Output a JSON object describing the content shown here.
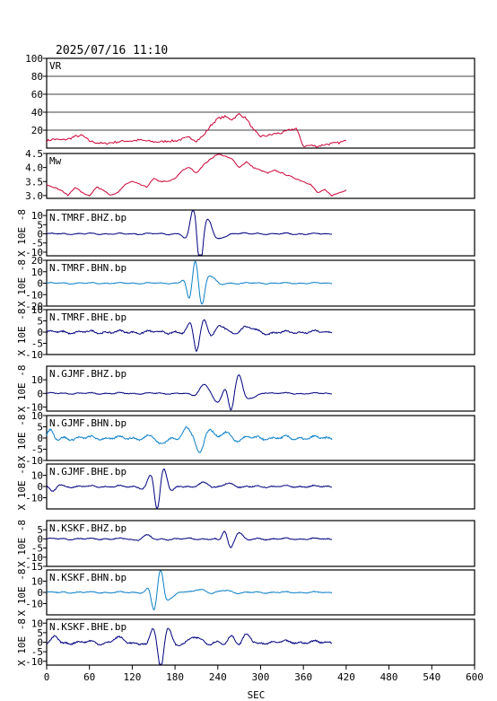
{
  "header": {
    "timestamp": "2025/07/16  11:10"
  },
  "colors": {
    "trace_dark": "#000080",
    "trace_light": "#0a7fc9",
    "inversion": "#cc0033",
    "frame": "#000000"
  },
  "chart_data": {
    "type": "line",
    "x_axis": {
      "label": "SEC",
      "range": [
        0,
        600
      ],
      "ticks": [
        0,
        60,
        120,
        180,
        240,
        300,
        360,
        420,
        480,
        540,
        600
      ],
      "tick_labels": [
        "0",
        "60",
        "120",
        "180",
        "240",
        "300",
        "360",
        "420",
        "480",
        "540",
        "600"
      ]
    },
    "panels": [
      {
        "id": "vr",
        "label": "VR",
        "ylim": [
          0,
          100
        ],
        "ticks": [
          20,
          40,
          60,
          80,
          100
        ],
        "tick_labels": [
          "20",
          "40",
          "60",
          "80",
          "100"
        ],
        "ylabel": "",
        "grid": true,
        "color": "inversion",
        "x": [
          0,
          10,
          20,
          30,
          40,
          50,
          60,
          70,
          80,
          90,
          100,
          110,
          120,
          130,
          140,
          150,
          160,
          170,
          180,
          190,
          200,
          210,
          220,
          230,
          240,
          250,
          260,
          270,
          280,
          290,
          300,
          310,
          320,
          330,
          340,
          350,
          360,
          370,
          380,
          390,
          400,
          410,
          420
        ],
        "values": [
          8,
          10,
          9,
          10,
          13,
          14,
          8,
          6,
          5,
          6,
          7,
          8,
          8,
          9,
          8,
          7,
          7,
          8,
          8,
          10,
          12,
          8,
          14,
          25,
          33,
          35,
          32,
          38,
          33,
          20,
          13,
          14,
          16,
          17,
          20,
          22,
          2,
          3,
          2,
          4,
          5,
          6,
          8
        ]
      },
      {
        "id": "mw",
        "label": "Mw",
        "ylim": [
          2.9,
          4.5
        ],
        "ticks": [
          3.0,
          3.5,
          4.0,
          4.5
        ],
        "tick_labels": [
          "3.0",
          "3.5",
          "4.0",
          "4.5"
        ],
        "ylabel": "",
        "grid": false,
        "color": "inversion",
        "x": [
          0,
          10,
          20,
          30,
          40,
          50,
          60,
          70,
          80,
          90,
          100,
          110,
          120,
          130,
          140,
          150,
          160,
          170,
          180,
          190,
          200,
          210,
          220,
          230,
          240,
          250,
          260,
          270,
          280,
          290,
          300,
          310,
          320,
          330,
          340,
          350,
          360,
          370,
          380,
          390,
          400,
          410,
          420
        ],
        "values": [
          3.4,
          3.3,
          3.2,
          3.0,
          3.3,
          3.1,
          3.0,
          3.3,
          3.2,
          3.0,
          3.1,
          3.4,
          3.5,
          3.4,
          3.3,
          3.6,
          3.5,
          3.5,
          3.6,
          3.9,
          4.0,
          3.8,
          4.1,
          4.3,
          4.5,
          4.4,
          4.3,
          4.0,
          4.2,
          4.0,
          3.9,
          3.8,
          3.9,
          3.8,
          3.7,
          3.6,
          3.5,
          3.4,
          3.1,
          3.2,
          3.0,
          3.1,
          3.2
        ]
      },
      {
        "id": "tmrf-bhz",
        "label": "N.TMRF.BHZ.bp",
        "ylim": [
          -12,
          13
        ],
        "ticks": [
          -10,
          -5,
          0,
          5,
          10
        ],
        "tick_labels": [
          "-10",
          "-5",
          "0",
          "5",
          "10"
        ],
        "ylabel": "X 10E -8",
        "grid": false,
        "color": "trace_dark",
        "events": [
          {
            "t": 205,
            "a": 10,
            "w": 10
          },
          {
            "t": 215,
            "a": -14,
            "w": 8
          },
          {
            "t": 228,
            "a": 6,
            "w": 10
          },
          {
            "t": 245,
            "a": -2,
            "w": 20
          }
        ],
        "noise": 0.6
      },
      {
        "id": "tmrf-bhn",
        "label": "N.TMRF.BHN.bp",
        "ylim": [
          -20,
          20
        ],
        "ticks": [
          -20,
          -10,
          0,
          10,
          20
        ],
        "tick_labels": [
          "-20",
          "-10",
          "0",
          "10",
          "20"
        ],
        "ylabel": "X 10E -8",
        "grid": false,
        "color": "trace_light",
        "events": [
          {
            "t": 200,
            "a": -10,
            "w": 8
          },
          {
            "t": 208,
            "a": 14,
            "w": 8
          },
          {
            "t": 218,
            "a": -14,
            "w": 8
          },
          {
            "t": 232,
            "a": 5,
            "w": 12
          }
        ],
        "noise": 0.8
      },
      {
        "id": "tmrf-bhe",
        "label": "N.TMRF.BHE.bp",
        "ylim": [
          -10,
          10
        ],
        "ticks": [
          -10,
          -5,
          0,
          5,
          10
        ],
        "tick_labels": [
          "-10",
          "-5",
          "0",
          "5",
          "10"
        ],
        "ylabel": "X 10E -8",
        "grid": false,
        "color": "trace_dark",
        "events": [
          {
            "t": 200,
            "a": 2,
            "w": 10
          },
          {
            "t": 210,
            "a": -6,
            "w": 8
          },
          {
            "t": 222,
            "a": 5,
            "w": 10
          },
          {
            "t": 245,
            "a": 3,
            "w": 18
          },
          {
            "t": 280,
            "a": 2,
            "w": 30
          }
        ],
        "noise": 1.0
      },
      {
        "id": "gjmf-bhz",
        "label": "N.GJMF.BHZ.bp",
        "ylim": [
          -13,
          20
        ],
        "ticks": [
          -10,
          0,
          10
        ],
        "tick_labels": [
          "-10",
          "0",
          "10"
        ],
        "ylabel": "X 10E -8",
        "grid": false,
        "color": "trace_dark",
        "events": [
          {
            "t": 220,
            "a": 6,
            "w": 14
          },
          {
            "t": 240,
            "a": -6,
            "w": 12
          },
          {
            "t": 258,
            "a": -10,
            "w": 8
          },
          {
            "t": 270,
            "a": 12,
            "w": 10
          },
          {
            "t": 290,
            "a": -3,
            "w": 16
          }
        ],
        "noise": 0.8
      },
      {
        "id": "gjmf-bhn",
        "label": "N.GJMF.BHN.bp",
        "ylim": [
          -10,
          10
        ],
        "ticks": [
          -10,
          -5,
          0,
          5,
          10
        ],
        "tick_labels": [
          "-10",
          "-5",
          "0",
          "5",
          "10"
        ],
        "ylabel": "X 10E -8",
        "grid": false,
        "color": "trace_light",
        "events": [
          {
            "t": 5,
            "a": 3,
            "w": 10
          },
          {
            "t": 160,
            "a": -3,
            "w": 14
          },
          {
            "t": 195,
            "a": 4,
            "w": 12
          },
          {
            "t": 215,
            "a": -5,
            "w": 10
          },
          {
            "t": 230,
            "a": 4,
            "w": 12
          },
          {
            "t": 250,
            "a": 3,
            "w": 16
          }
        ],
        "noise": 1.2
      },
      {
        "id": "gjmf-bhe",
        "label": "N.GJMF.BHE.bp",
        "ylim": [
          -20,
          20
        ],
        "ticks": [
          -10,
          0,
          10
        ],
        "tick_labels": [
          "-10",
          "0",
          "10"
        ],
        "ylabel": "X 10E -8",
        "grid": false,
        "color": "trace_dark",
        "events": [
          {
            "t": 8,
            "a": -5,
            "w": 10
          },
          {
            "t": 145,
            "a": 6,
            "w": 10
          },
          {
            "t": 155,
            "a": -16,
            "w": 8
          },
          {
            "t": 165,
            "a": 12,
            "w": 10
          },
          {
            "t": 220,
            "a": 4,
            "w": 18
          },
          {
            "t": 255,
            "a": 3,
            "w": 20
          }
        ],
        "noise": 1.3
      },
      {
        "id": "kskf-bhz",
        "label": "N.KSKF.BHZ.bp",
        "ylim": [
          -15,
          10
        ],
        "ticks": [
          -15,
          -10,
          -5,
          0,
          5
        ],
        "tick_labels": [
          "-15",
          "-10",
          "-5",
          "0",
          "5"
        ],
        "ylabel": "X 10E -8",
        "grid": false,
        "color": "trace_dark",
        "events": [
          {
            "t": 140,
            "a": 2,
            "w": 14
          },
          {
            "t": 250,
            "a": 4,
            "w": 8
          },
          {
            "t": 258,
            "a": -3,
            "w": 10
          },
          {
            "t": 270,
            "a": 3,
            "w": 12
          }
        ],
        "noise": 0.7
      },
      {
        "id": "kskf-bhn",
        "label": "N.KSKF.BHN.bp",
        "ylim": [
          -20,
          20
        ],
        "ticks": [
          -10,
          0,
          10
        ],
        "tick_labels": [
          "-10",
          "0",
          "10"
        ],
        "ylabel": "X 10E -8",
        "grid": false,
        "color": "trace_light",
        "events": [
          {
            "t": 150,
            "a": -12,
            "w": 8
          },
          {
            "t": 160,
            "a": 16,
            "w": 8
          },
          {
            "t": 175,
            "a": -4,
            "w": 14
          },
          {
            "t": 215,
            "a": 3,
            "w": 20
          },
          {
            "t": 250,
            "a": 2,
            "w": 20
          }
        ],
        "noise": 1.0
      },
      {
        "id": "kskf-bhe",
        "label": "N.KSKF.BHE.bp",
        "ylim": [
          -12,
          12
        ],
        "ticks": [
          -10,
          -5,
          0,
          5,
          10
        ],
        "tick_labels": [
          "-10",
          "-5",
          "0",
          "5",
          "10"
        ],
        "ylabel": "X 10E -8",
        "grid": false,
        "color": "trace_dark",
        "events": [
          {
            "t": 12,
            "a": 3,
            "w": 10
          },
          {
            "t": 100,
            "a": 2,
            "w": 20
          },
          {
            "t": 148,
            "a": 5,
            "w": 8
          },
          {
            "t": 160,
            "a": -12,
            "w": 8
          },
          {
            "t": 172,
            "a": 6,
            "w": 10
          },
          {
            "t": 210,
            "a": 3,
            "w": 18
          },
          {
            "t": 260,
            "a": 4,
            "w": 12
          },
          {
            "t": 280,
            "a": 4,
            "w": 14
          }
        ],
        "noise": 1.2
      }
    ]
  }
}
